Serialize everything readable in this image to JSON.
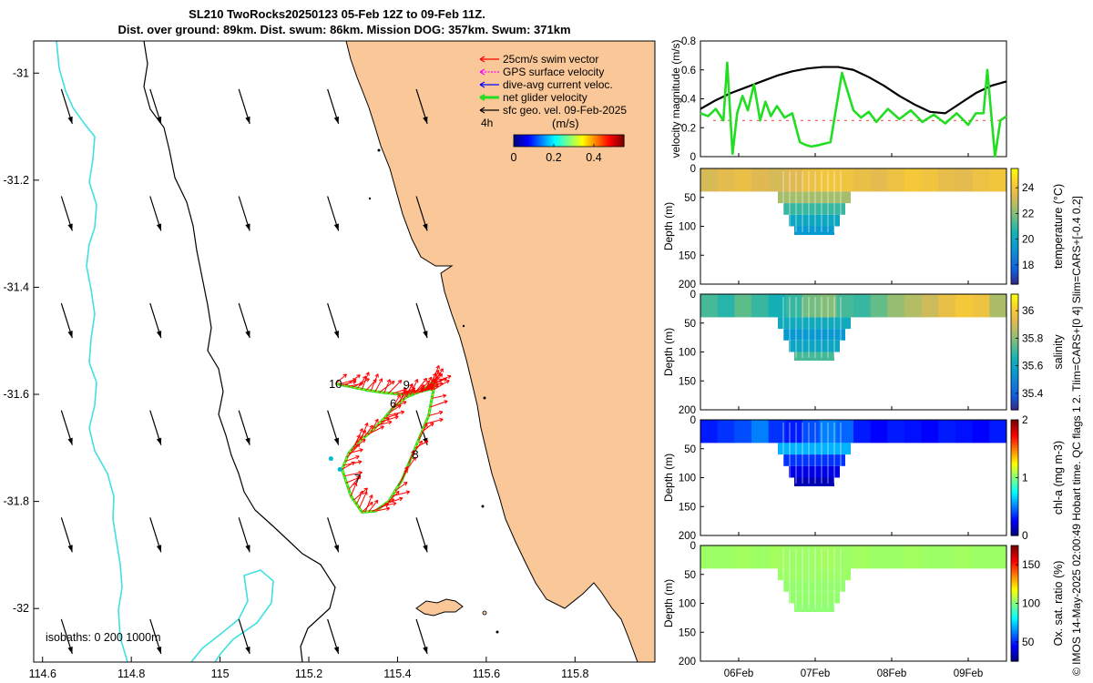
{
  "title": {
    "line1": "SL210 TwoRocks20250123 05-Feb 12Z to 09-Feb 11Z.",
    "line2": "Dist. over ground: 89km. Dist. swum: 86km. Mission DOG: 357km. Swum: 371km"
  },
  "side_label": "© IMOS 14-May-2025 02:00:49 Hobart time. QC flags 1  2. Tlim=CARS+[0 4] Slim=CARS+[-0.4 0.2]",
  "colors": {
    "land": "#fac898",
    "isobath_0": "#000000",
    "isobath_200": "#000000",
    "isobath_1000": "#40e0e0",
    "speed_line": "#000000",
    "glider_line": "#22dd22",
    "swim_vector": "#ff0000",
    "gps_vector": "#ff00ff",
    "current_vector": "#0000ff",
    "geo_vector": "#000000"
  },
  "chart_data": [
    {
      "id": "map",
      "type": "scatter",
      "title": "",
      "xlim": [
        114.58,
        115.98
      ],
      "ylim": [
        -32.1,
        -30.94
      ],
      "xticks": [
        114.6,
        114.8,
        115,
        115.2,
        115.4,
        115.6,
        115.8
      ],
      "xtick_labels": [
        "114.6",
        "114.8",
        "115",
        "115.2",
        "115.4",
        "115.6",
        "115.8"
      ],
      "yticks": [
        -31,
        -31.2,
        -31.4,
        -31.6,
        -31.8,
        -32
      ],
      "ytick_labels": [
        "-31",
        "-31.2",
        "-31.4",
        "-31.6",
        "-31.8",
        "-32"
      ],
      "legend": {
        "position": "top-right",
        "entries": [
          {
            "label": "25cm/s swim vector",
            "color": "#ff0000"
          },
          {
            "label": "GPS surface velocity",
            "color": "#ff00ff"
          },
          {
            "label": "dive-avg current veloc.",
            "color": "#0000ff"
          },
          {
            "label": "net glider velocity",
            "color": "#22dd22"
          },
          {
            "label": "sfc geo. vel. 09-Feb-2025",
            "color": "#000000"
          }
        ]
      },
      "interval_label": "4h",
      "colorbar": {
        "label": "(m/s)",
        "ticks": [
          0,
          0.2,
          0.4
        ],
        "tick_labels": [
          "0",
          "0.2",
          "0.4"
        ],
        "range": [
          0,
          0.55
        ]
      },
      "isobaths_label": "isobaths: 0   200  1000m",
      "day_labels": [
        {
          "text": "10",
          "lon": 115.26,
          "lat": -31.588
        },
        {
          "text": "9",
          "lon": 115.42,
          "lat": -31.59
        },
        {
          "text": "6",
          "lon": 115.39,
          "lat": -31.625
        },
        {
          "text": "7",
          "lon": 115.31,
          "lat": -31.765
        },
        {
          "text": "8",
          "lon": 115.44,
          "lat": -31.72
        }
      ],
      "geo_vectors": {
        "lons": [
          114.63,
          114.83,
          115.03,
          115.23,
          115.43
        ],
        "lats": [
          -31.03,
          -31.23,
          -31.43,
          -31.63,
          -31.83,
          -32.02
        ]
      },
      "track": {
        "lon": [
          115.26,
          115.29,
          115.33,
          115.37,
          115.41,
          115.45,
          115.475,
          115.485,
          115.47,
          115.44,
          115.41,
          115.38,
          115.35,
          115.32,
          115.295,
          115.275,
          115.29,
          115.31,
          115.34,
          115.37,
          115.39,
          115.42,
          115.45,
          115.47,
          115.48
        ],
        "lat": [
          -31.58,
          -31.585,
          -31.592,
          -31.597,
          -31.6,
          -31.595,
          -31.59,
          -31.575,
          -31.64,
          -31.7,
          -31.76,
          -31.8,
          -31.818,
          -31.82,
          -31.79,
          -31.74,
          -31.71,
          -31.69,
          -31.67,
          -31.645,
          -31.625,
          -31.605,
          -31.595,
          -31.585,
          -31.575
        ]
      }
    },
    {
      "id": "velocity",
      "type": "line",
      "ylabel": "velocity magnitude (m/s)",
      "ylim": [
        0,
        0.8
      ],
      "yticks": [
        0,
        0.2,
        0.4,
        0.6,
        0.8
      ],
      "ytick_labels": [
        "0",
        "0.2",
        "0.4",
        "0.6",
        "0.8"
      ],
      "xlim": [
        0,
        4
      ],
      "series": [
        {
          "name": "sfc geo. speed",
          "color": "#000000",
          "x": [
            0,
            0.2,
            0.4,
            0.6,
            0.8,
            1.0,
            1.2,
            1.4,
            1.6,
            1.8,
            2.0,
            2.2,
            2.4,
            2.6,
            2.8,
            3.0,
            3.2,
            3.4,
            3.6,
            3.8,
            4.0
          ],
          "values": [
            0.33,
            0.39,
            0.44,
            0.48,
            0.52,
            0.56,
            0.59,
            0.61,
            0.62,
            0.62,
            0.6,
            0.55,
            0.49,
            0.42,
            0.36,
            0.31,
            0.3,
            0.37,
            0.44,
            0.49,
            0.52
          ]
        },
        {
          "name": "net glider velocity",
          "color": "#22dd22",
          "x": [
            0,
            0.1,
            0.2,
            0.3,
            0.35,
            0.42,
            0.48,
            0.55,
            0.62,
            0.7,
            0.78,
            0.85,
            0.92,
            1.0,
            1.1,
            1.2,
            1.25,
            1.3,
            1.38,
            1.45,
            1.55,
            1.7,
            1.85,
            2.0,
            2.1,
            2.2,
            2.3,
            2.45,
            2.6,
            2.75,
            2.9,
            3.05,
            3.2,
            3.35,
            3.5,
            3.6,
            3.7,
            3.75,
            3.8,
            3.85,
            3.92,
            4.0
          ],
          "values": [
            0.3,
            0.28,
            0.33,
            0.25,
            0.65,
            0.02,
            0.3,
            0.42,
            0.32,
            0.5,
            0.25,
            0.38,
            0.28,
            0.35,
            0.27,
            0.3,
            0.2,
            0.1,
            0.08,
            0.07,
            0.08,
            0.1,
            0.58,
            0.32,
            0.27,
            0.31,
            0.24,
            0.33,
            0.26,
            0.32,
            0.24,
            0.29,
            0.23,
            0.3,
            0.22,
            0.3,
            0.3,
            0.6,
            0.3,
            0.0,
            0.25,
            0.28
          ]
        }
      ]
    },
    {
      "id": "temperature",
      "type": "heatmap",
      "ylabel": "Depth (m)",
      "cbar_label": "temperature (°C)",
      "ylim": [
        0,
        200
      ],
      "yticks": [
        0,
        50,
        100,
        150,
        200
      ],
      "ytick_labels": [
        "0",
        "50",
        "100",
        "150",
        "200"
      ],
      "cbar_ticks": [
        18,
        20,
        22,
        24
      ],
      "cbar_tick_labels": [
        "18",
        "20",
        "22",
        "24"
      ],
      "cbar_range": [
        16.5,
        25.5
      ],
      "surface": [
        23.3,
        23.6,
        23.8,
        23.5,
        23.3,
        23.5,
        23.9,
        24.1,
        24.0,
        23.8,
        23.6,
        23.9,
        24.2,
        24.0,
        23.7,
        23.6,
        23.9,
        24.1
      ],
      "dip_values": [
        22.5,
        21.0,
        20.0,
        19.4
      ]
    },
    {
      "id": "salinity",
      "type": "heatmap",
      "ylabel": "Depth (m)",
      "cbar_label": "salinity",
      "ylim": [
        0,
        200
      ],
      "yticks": [
        0,
        50,
        100,
        150,
        200
      ],
      "ytick_labels": [
        "0",
        "50",
        "100",
        "150",
        "200"
      ],
      "cbar_ticks": [
        35.4,
        35.6,
        35.8,
        36
      ],
      "cbar_tick_labels": [
        "35.4",
        "35.6",
        "35.8",
        "36"
      ],
      "cbar_range": [
        35.28,
        36.12
      ],
      "surface": [
        35.72,
        35.68,
        35.75,
        35.7,
        35.65,
        35.7,
        35.78,
        35.8,
        35.72,
        35.7,
        35.76,
        35.82,
        35.86,
        35.9,
        35.96,
        36.0,
        35.98,
        35.85
      ],
      "dip_values": [
        35.62,
        35.55,
        35.6,
        35.72
      ]
    },
    {
      "id": "chla",
      "type": "heatmap",
      "ylabel": "Depth (m)",
      "cbar_label": "chl-a (mg m-3)",
      "ylim": [
        0,
        200
      ],
      "yticks": [
        0,
        50,
        100,
        150,
        200
      ],
      "ytick_labels": [
        "0",
        "50",
        "100",
        "150",
        "200"
      ],
      "cbar_ticks": [
        0,
        1,
        2
      ],
      "cbar_tick_labels": [
        "0",
        "1",
        "2"
      ],
      "cbar_range": [
        0,
        2
      ],
      "surface": [
        0.3,
        0.35,
        0.4,
        0.5,
        0.35,
        0.3,
        0.4,
        0.5,
        0.45,
        0.3,
        0.25,
        0.3,
        0.28,
        0.25,
        0.3,
        0.28,
        0.25,
        0.3
      ],
      "dip_values": [
        0.6,
        0.35,
        0.2,
        0.1
      ]
    },
    {
      "id": "oxygen",
      "type": "heatmap",
      "ylabel": "Depth (m)",
      "cbar_label": "Ox. sat. ratio (%)",
      "ylim": [
        0,
        200
      ],
      "yticks": [
        0,
        50,
        100,
        150,
        200
      ],
      "ytick_labels": [
        "0",
        "50",
        "100",
        "150",
        "200"
      ],
      "cbar_ticks": [
        50,
        100,
        150
      ],
      "cbar_tick_labels": [
        "50",
        "100",
        "150"
      ],
      "cbar_range": [
        25,
        175
      ],
      "surface": [
        104,
        104,
        105,
        104,
        105,
        104,
        104,
        105,
        104,
        105,
        104,
        104,
        105,
        104,
        104,
        105,
        104,
        104
      ],
      "dip_values": [
        104,
        103,
        103,
        102
      ]
    }
  ],
  "time_axis": {
    "ticks": [
      0.5,
      1.5,
      2.5,
      3.5
    ],
    "tick_labels": [
      "06Feb",
      "07Feb",
      "08Feb",
      "09Feb"
    ]
  }
}
